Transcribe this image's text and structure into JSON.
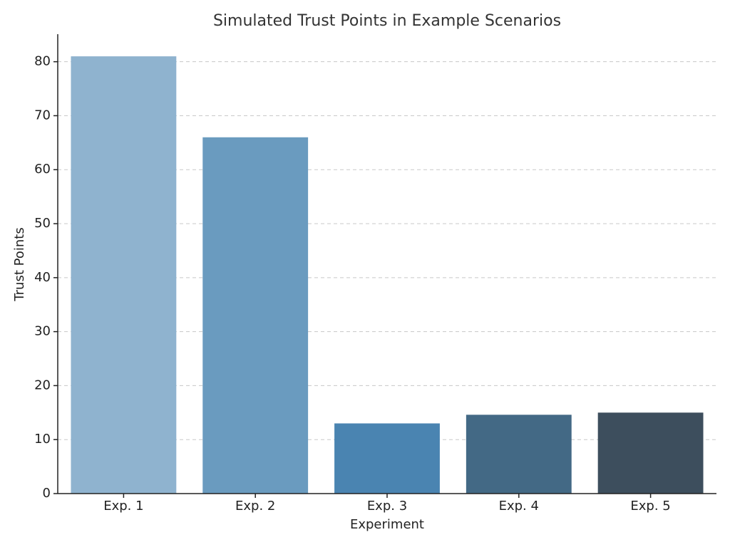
{
  "chart_data": {
    "type": "bar",
    "title": "Simulated Trust Points in Example Scenarios",
    "xlabel": "Experiment",
    "ylabel": "Trust Points",
    "categories": [
      "Exp. 1",
      "Exp. 2",
      "Exp. 3",
      "Exp. 4",
      "Exp. 5"
    ],
    "values": [
      81,
      66,
      13,
      14.6,
      15
    ],
    "colors": [
      "#8fb3cf",
      "#6a9bbf",
      "#4a84b1",
      "#436985",
      "#3d4e5d"
    ],
    "ylim": [
      0,
      85.1
    ],
    "yticks": [
      0,
      10,
      20,
      30,
      40,
      50,
      60,
      70,
      80
    ],
    "grid": true
  }
}
